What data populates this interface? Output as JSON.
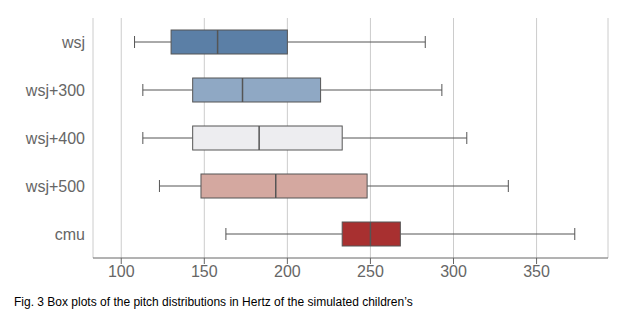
{
  "chart_data": {
    "type": "box",
    "orientation": "horizontal",
    "caption": "Fig. 3  Box plots of the pitch distributions in Hertz of the simulated children’s",
    "categories": [
      "wsj",
      "wsj+300",
      "wsj+400",
      "wsj+500",
      "cmu"
    ],
    "stats": [
      {
        "whislo": 108,
        "q1": 130,
        "med": 158,
        "q3": 200,
        "whishi": 283
      },
      {
        "whislo": 113,
        "q1": 143,
        "med": 173,
        "q3": 220,
        "whishi": 293
      },
      {
        "whislo": 113,
        "q1": 143,
        "med": 183,
        "q3": 233,
        "whishi": 308
      },
      {
        "whislo": 123,
        "q1": 148,
        "med": 193,
        "q3": 248,
        "whishi": 333
      },
      {
        "whislo": 163,
        "q1": 233,
        "med": 250,
        "q3": 268,
        "whishi": 373
      }
    ],
    "colors": [
      "#5b7fa6",
      "#8fa8c4",
      "#ededf0",
      "#d4a8a0",
      "#a83030"
    ],
    "xlim": [
      83,
      393
    ],
    "xticks": [
      100,
      150,
      200,
      250,
      300,
      350
    ],
    "grid": true
  }
}
